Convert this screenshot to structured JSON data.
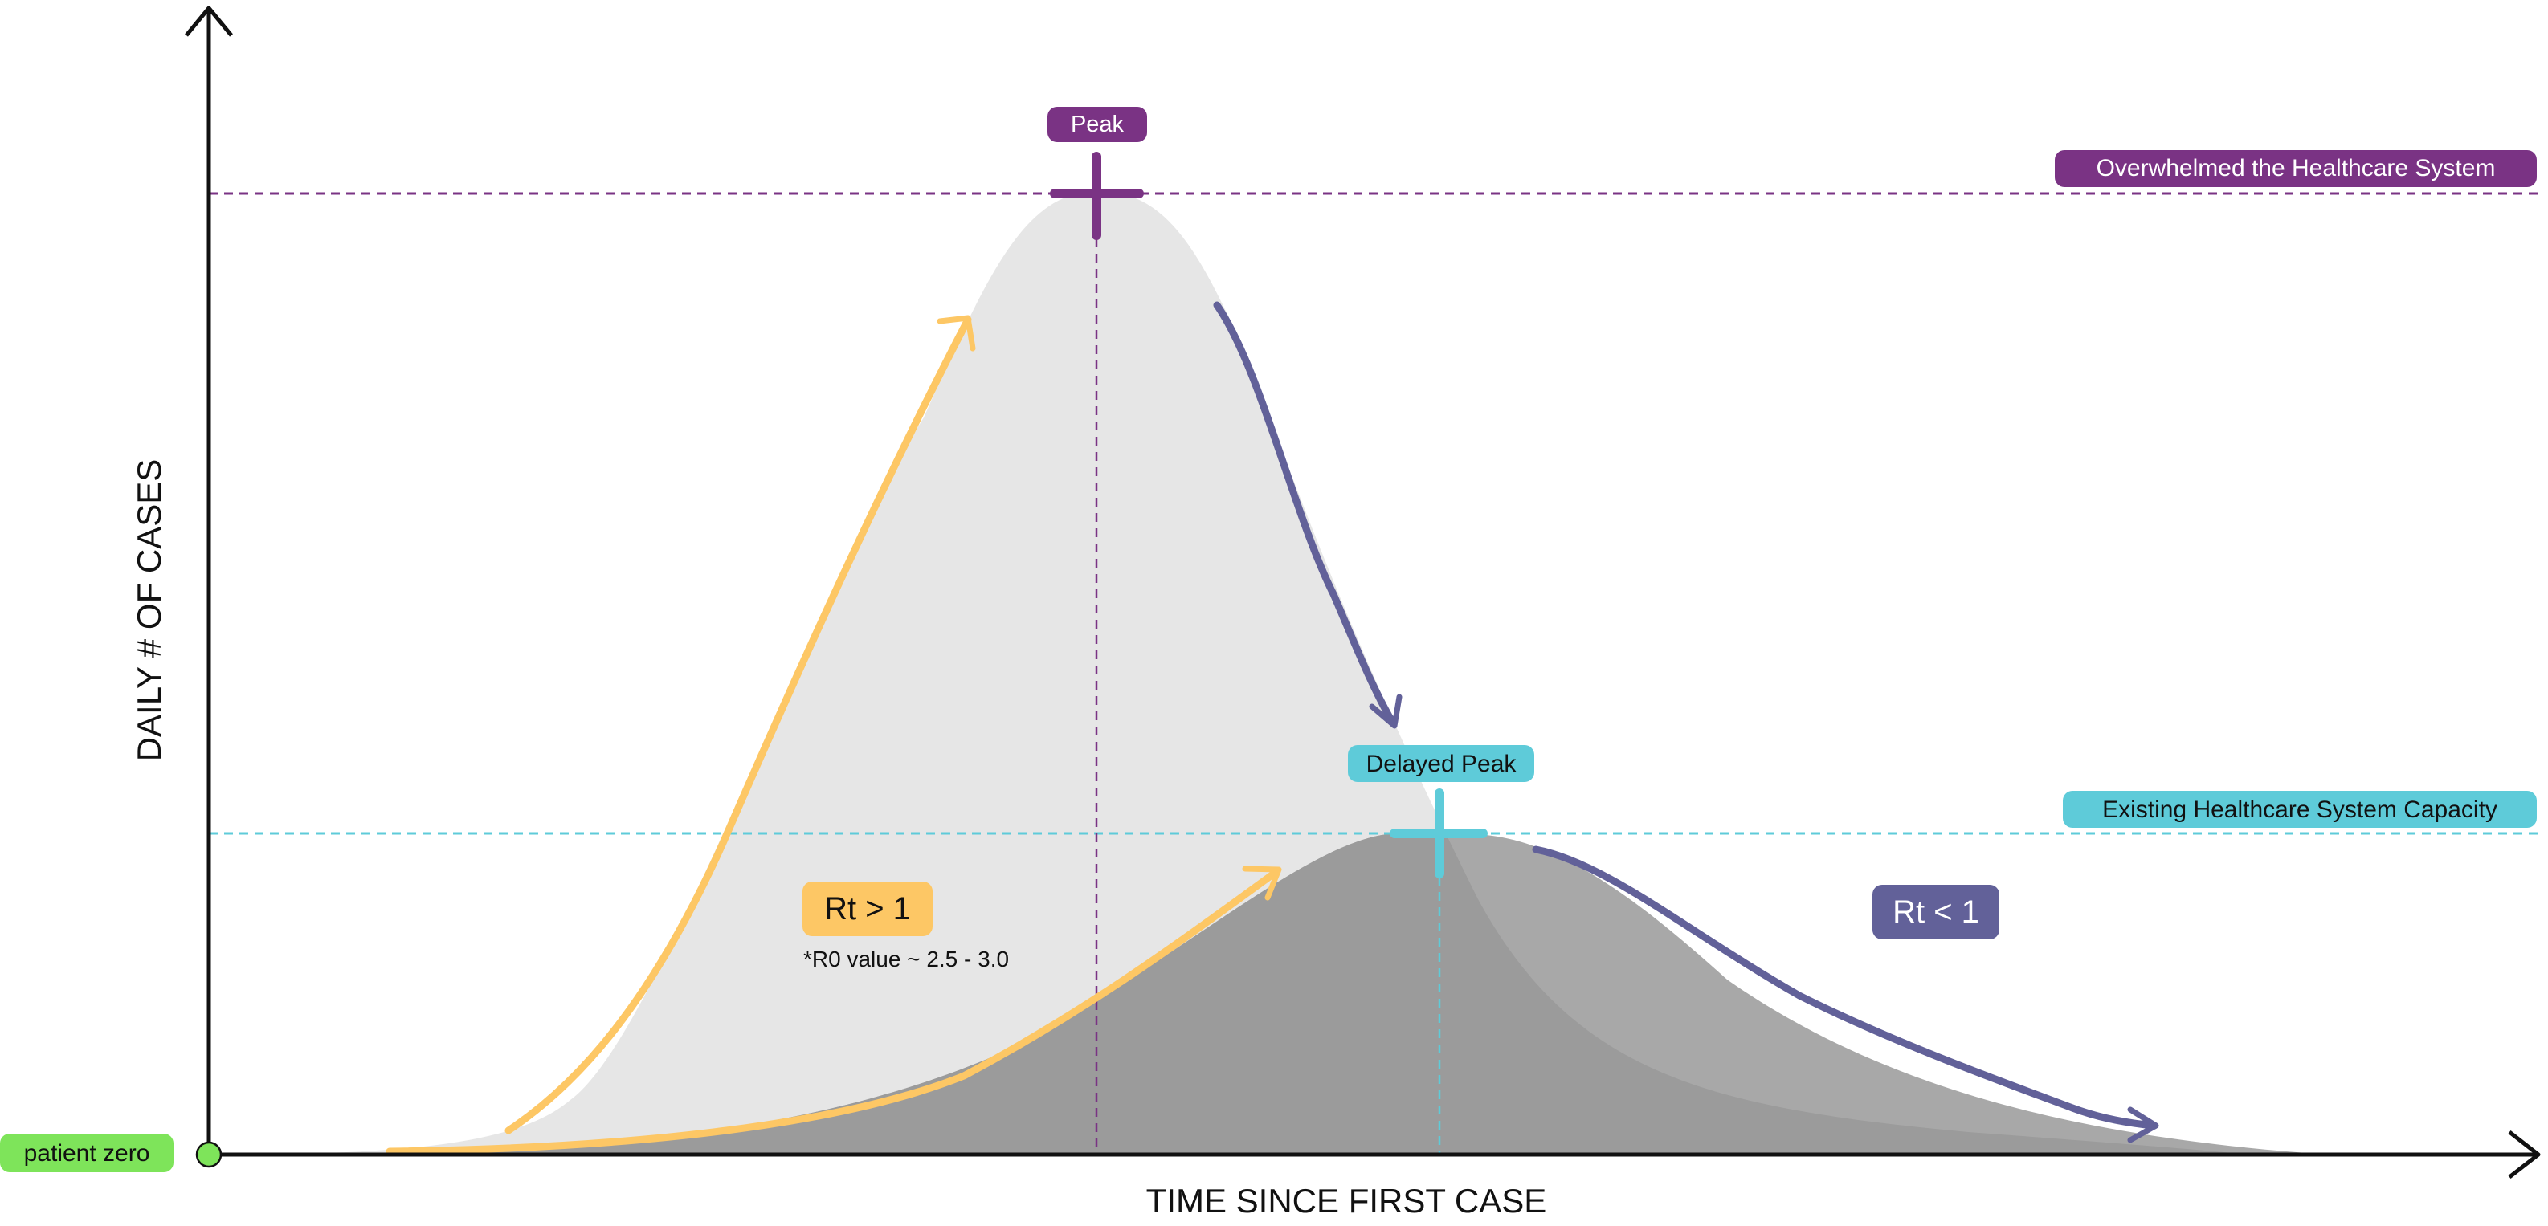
{
  "axes": {
    "x_label": "TIME SINCE FIRST CASE",
    "y_label": "DAILY # OF CASES"
  },
  "labels": {
    "peak": "Peak",
    "delayed_peak": "Delayed Peak",
    "overwhelmed": "Overwhelmed the Healthcare System",
    "capacity": "Existing Healthcare System Capacity",
    "rt_gt_1": "Rt > 1",
    "r0_note": "*R0 value ~ 2.5 - 3.0",
    "rt_lt_1": "Rt < 1",
    "patient_zero": "patient zero"
  },
  "colors": {
    "peak_purple": "#7a3384",
    "capacity_cyan": "#5ecbd9",
    "rt_gt_yellow": "#fdc765",
    "rt_lt_indigo": "#626199",
    "patient_zero_green": "#7ee45a",
    "unmitigated_curve": "#e6e6e6",
    "flattened_curve": "#9b9b9b",
    "flattened_tail": "#a8a8a8",
    "axis": "#111111"
  },
  "icons": {
    "peak_marker": "plus-marker-icon",
    "delayed_peak_marker": "plus-marker-icon",
    "origin": "circle-dot-icon"
  }
}
